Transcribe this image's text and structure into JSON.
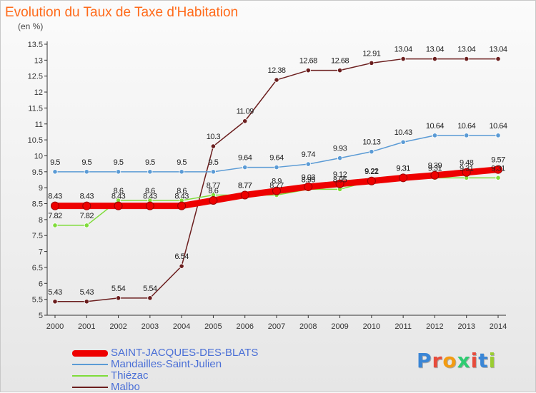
{
  "title": "Evolution du Taux de Taxe d'Habitation",
  "subtitle": "(en %)",
  "brand": {
    "text": "Proxiti",
    "letters": [
      {
        "ch": "P",
        "color": "#3a86d6"
      },
      {
        "ch": "r",
        "color": "#e74c3c"
      },
      {
        "ch": "o",
        "color": "#f39c12"
      },
      {
        "ch": "x",
        "color": "#2ecc71"
      },
      {
        "ch": "i",
        "color": "#e74c3c"
      },
      {
        "ch": "t",
        "color": "#3a86d6"
      },
      {
        "ch": "i",
        "color": "#9acd32"
      }
    ]
  },
  "chart_data": {
    "type": "line",
    "title": "Evolution du Taux de Taxe d'Habitation",
    "subtitle": "(en %)",
    "x": [
      "2000",
      "2001",
      "2002",
      "2003",
      "2004",
      "2005",
      "2006",
      "2007",
      "2008",
      "2009",
      "2010",
      "2011",
      "2012",
      "2013",
      "2014"
    ],
    "ylim": [
      5,
      13.5
    ],
    "yticks": [
      "5",
      "5.5",
      "6",
      "6.5",
      "7",
      "7.5",
      "8",
      "8.5",
      "9",
      "9.5",
      "10",
      "10.5",
      "11",
      "11.5",
      "12",
      "12.5",
      "13",
      "13.5"
    ],
    "grid": false,
    "legend_position": "bottom-left",
    "series": [
      {
        "name": "SAINT-JACQUES-DES-BLATS",
        "color": "#ee0000",
        "values": [
          8.43,
          8.43,
          8.43,
          8.43,
          8.43,
          8.6,
          8.77,
          8.9,
          9.03,
          9.12,
          9.21,
          9.31,
          9.39,
          9.48,
          9.57
        ]
      },
      {
        "name": "Mandailles-Saint-Julien",
        "color": "#5b9bd5",
        "values": [
          9.5,
          9.5,
          9.5,
          9.5,
          9.5,
          9.5,
          9.64,
          9.64,
          9.74,
          9.93,
          10.13,
          10.43,
          10.64,
          10.64,
          10.64
        ]
      },
      {
        "name": "Thiézac",
        "color": "#7fdc3a",
        "values": [
          7.82,
          7.82,
          8.6,
          8.6,
          8.6,
          8.77,
          8.77,
          8.77,
          8.95,
          8.95,
          9.22,
          9.31,
          9.31,
          9.31,
          9.31
        ]
      },
      {
        "name": "Malbo",
        "color": "#6b1e1e",
        "values": [
          5.43,
          5.43,
          5.54,
          5.54,
          6.54,
          10.3,
          11.09,
          12.38,
          12.68,
          12.68,
          12.91,
          13.04,
          13.04,
          13.04,
          13.04
        ]
      }
    ]
  }
}
